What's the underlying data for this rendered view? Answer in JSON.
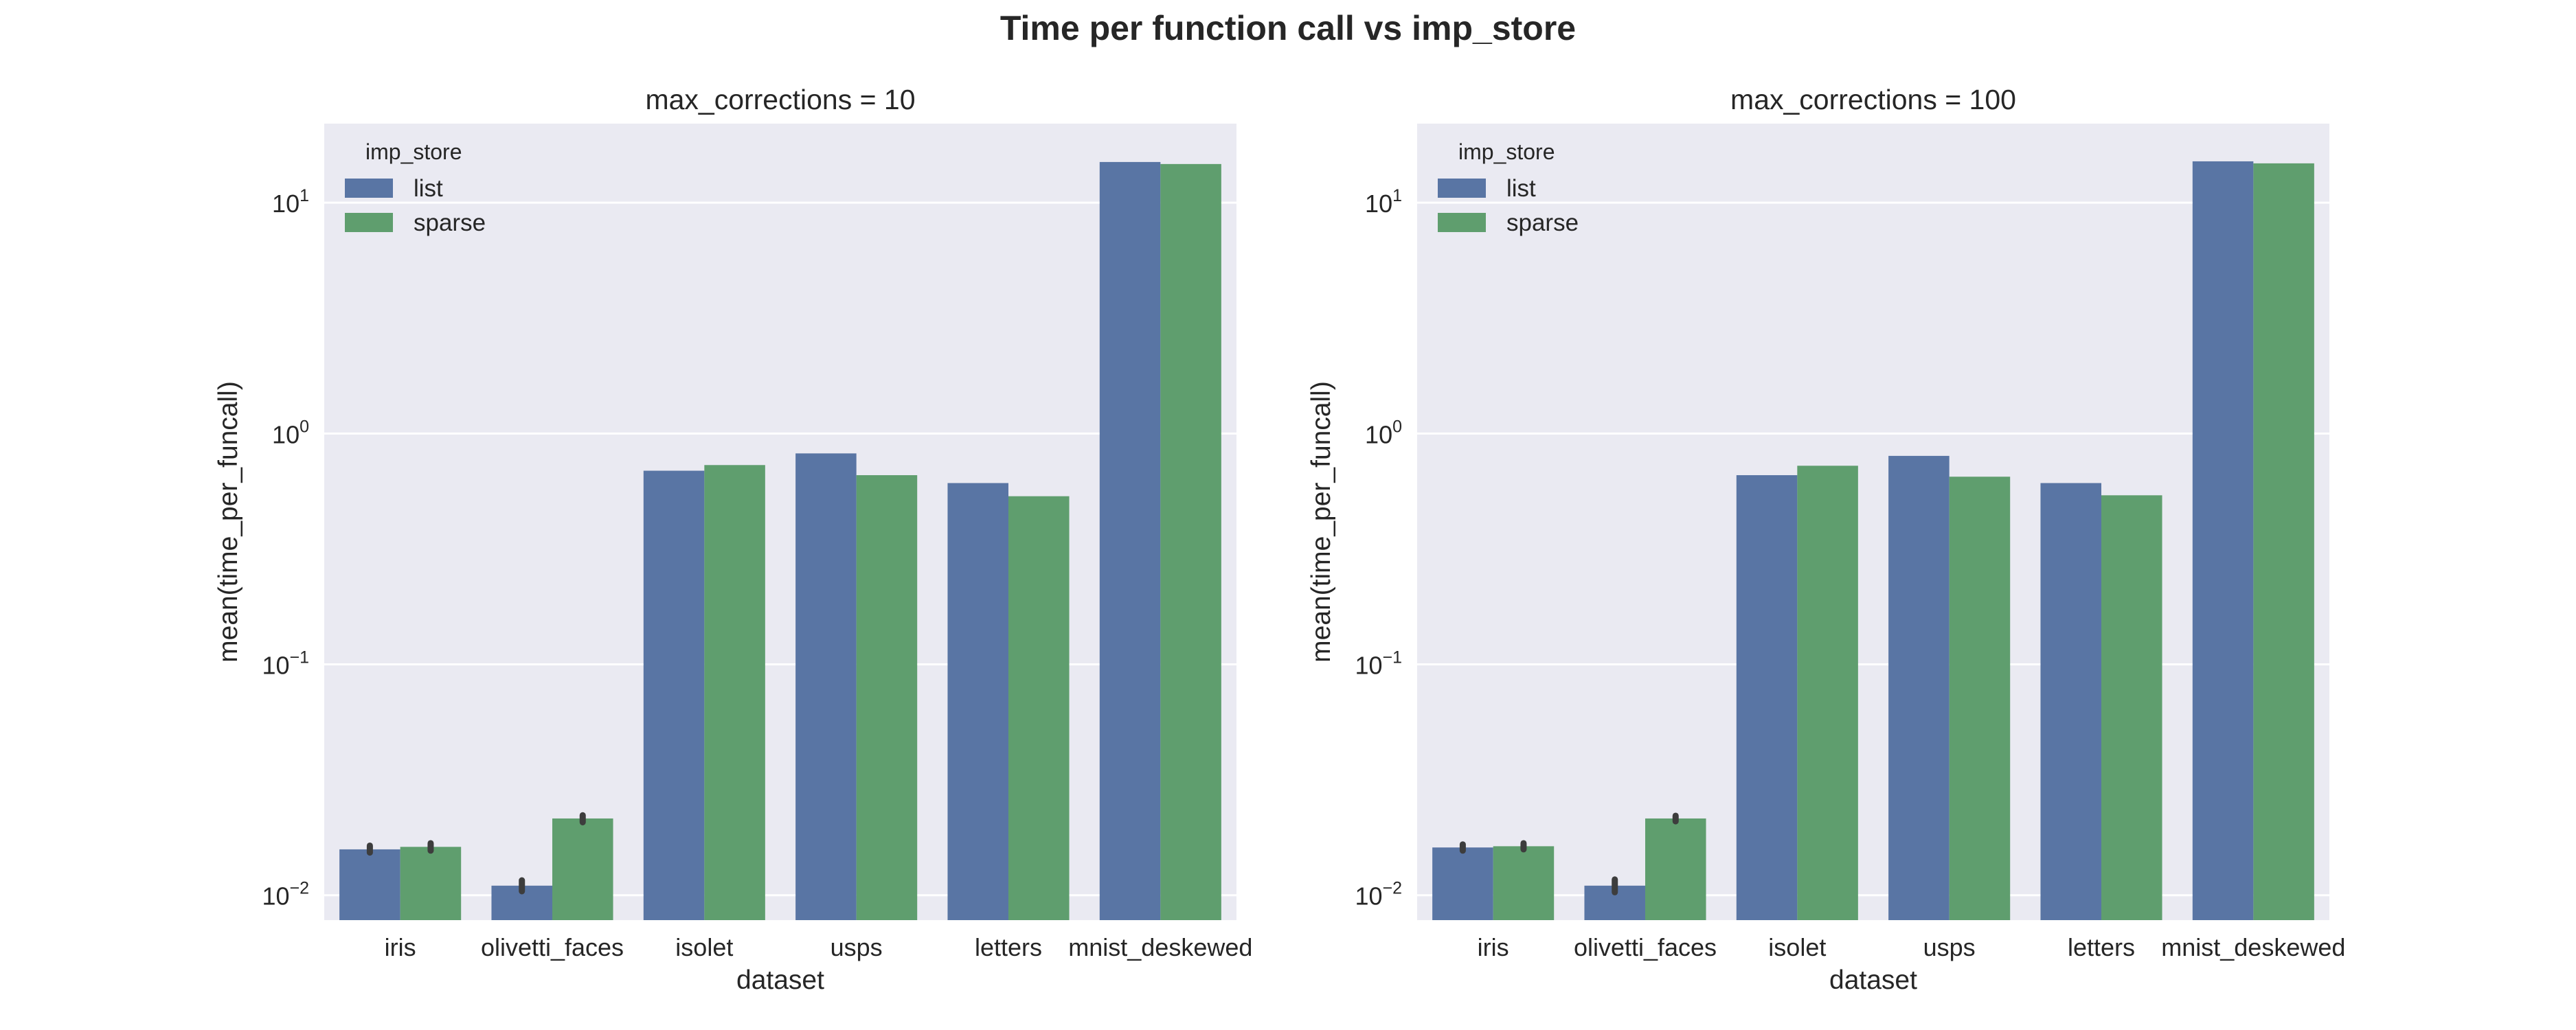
{
  "figure": {
    "title": "Time per function call vs imp_store"
  },
  "colors": {
    "background": "#EAEAF2",
    "grid": "#FFFFFF",
    "list": "#5975A4",
    "sparse": "#5F9E6E",
    "errorbar": "#3D3D3D"
  },
  "chart_data": [
    {
      "type": "bar",
      "title": "max_corrections = 10",
      "xlabel": "dataset",
      "ylabel": "mean(time_per_funcall)",
      "yscale": "log",
      "ylim": [
        0.0078,
        22
      ],
      "yticks": [
        0.01,
        0.1,
        1,
        10
      ],
      "ytick_labels": [
        {
          "base": "10",
          "exp": "−2"
        },
        {
          "base": "10",
          "exp": "−1"
        },
        {
          "base": "10",
          "exp": "0"
        },
        {
          "base": "10",
          "exp": "1"
        }
      ],
      "grid": true,
      "legend": {
        "title": "imp_store",
        "position": "top-left"
      },
      "categories": [
        "iris",
        "olivetti_faces",
        "isolet",
        "usps",
        "letters",
        "mnist_deskewed"
      ],
      "series": [
        {
          "name": "list",
          "color": "#5975A4",
          "values": [
            0.0158,
            0.011,
            0.69,
            0.82,
            0.61,
            15.0
          ],
          "errors": [
            [
              0.0153,
              0.0164
            ],
            [
              0.0104,
              0.0116
            ],
            null,
            null,
            null,
            null
          ]
        },
        {
          "name": "sparse",
          "color": "#5F9E6E",
          "values": [
            0.0162,
            0.0215,
            0.73,
            0.66,
            0.535,
            14.7
          ],
          "errors": [
            [
              0.0156,
              0.0168
            ],
            [
              0.0207,
              0.0222
            ],
            null,
            null,
            null,
            null
          ]
        }
      ]
    },
    {
      "type": "bar",
      "title": "max_corrections = 100",
      "xlabel": "dataset",
      "ylabel": "mean(time_per_funcall)",
      "yscale": "log",
      "ylim": [
        0.0078,
        22
      ],
      "yticks": [
        0.01,
        0.1,
        1,
        10
      ],
      "ytick_labels": [
        {
          "base": "10",
          "exp": "−2"
        },
        {
          "base": "10",
          "exp": "−1"
        },
        {
          "base": "10",
          "exp": "0"
        },
        {
          "base": "10",
          "exp": "1"
        }
      ],
      "grid": true,
      "legend": {
        "title": "imp_store",
        "position": "top-left"
      },
      "categories": [
        "iris",
        "olivetti_faces",
        "isolet",
        "usps",
        "letters",
        "mnist_deskewed"
      ],
      "series": [
        {
          "name": "list",
          "color": "#5975A4",
          "values": [
            0.0161,
            0.011,
            0.66,
            0.8,
            0.61,
            15.1
          ],
          "errors": [
            [
              0.0156,
              0.0166
            ],
            [
              0.0103,
              0.0117
            ],
            null,
            null,
            null,
            null
          ]
        },
        {
          "name": "sparse",
          "color": "#5F9E6E",
          "values": [
            0.0163,
            0.0215,
            0.725,
            0.65,
            0.54,
            14.8
          ],
          "errors": [
            [
              0.0158,
              0.0168
            ],
            [
              0.0209,
              0.0221
            ],
            null,
            null,
            null,
            null
          ]
        }
      ]
    }
  ]
}
